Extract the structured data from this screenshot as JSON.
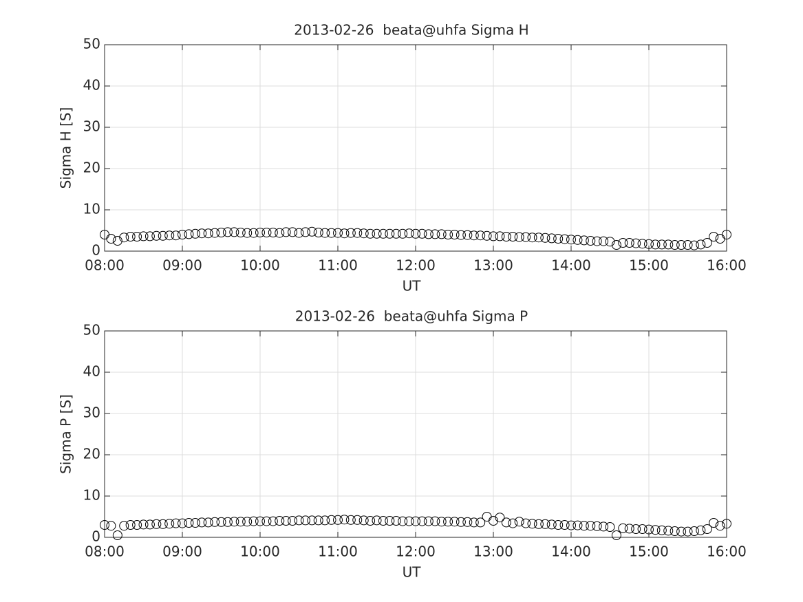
{
  "chart_data": [
    {
      "type": "scatter",
      "title": "2013-02-26  beata@uhfa Sigma H",
      "xlabel": "UT",
      "ylabel": "Sigma H [S]",
      "x": [
        "08:00",
        "08:05",
        "08:10",
        "08:15",
        "08:20",
        "08:25",
        "08:30",
        "08:35",
        "08:40",
        "08:45",
        "08:50",
        "08:55",
        "09:00",
        "09:05",
        "09:10",
        "09:15",
        "09:20",
        "09:25",
        "09:30",
        "09:35",
        "09:40",
        "09:45",
        "09:50",
        "09:55",
        "10:00",
        "10:05",
        "10:10",
        "10:15",
        "10:20",
        "10:25",
        "10:30",
        "10:35",
        "10:40",
        "10:45",
        "10:50",
        "10:55",
        "11:00",
        "11:05",
        "11:10",
        "11:15",
        "11:20",
        "11:25",
        "11:30",
        "11:35",
        "11:40",
        "11:45",
        "11:50",
        "11:55",
        "12:00",
        "12:05",
        "12:10",
        "12:15",
        "12:20",
        "12:25",
        "12:30",
        "12:35",
        "12:40",
        "12:45",
        "12:50",
        "12:55",
        "13:00",
        "13:05",
        "13:10",
        "13:15",
        "13:20",
        "13:25",
        "13:30",
        "13:35",
        "13:40",
        "13:45",
        "13:50",
        "13:55",
        "14:00",
        "14:05",
        "14:10",
        "14:15",
        "14:20",
        "14:25",
        "14:30",
        "14:35",
        "14:40",
        "14:45",
        "14:50",
        "14:55",
        "15:00",
        "15:05",
        "15:10",
        "15:15",
        "15:20",
        "15:25",
        "15:30",
        "15:35",
        "15:40",
        "15:45",
        "15:50",
        "15:55",
        "16:00"
      ],
      "values": [
        4.0,
        3.0,
        2.5,
        3.3,
        3.5,
        3.5,
        3.6,
        3.6,
        3.7,
        3.7,
        3.8,
        3.8,
        4.0,
        4.1,
        4.2,
        4.3,
        4.3,
        4.4,
        4.5,
        4.6,
        4.6,
        4.5,
        4.4,
        4.4,
        4.5,
        4.5,
        4.5,
        4.4,
        4.6,
        4.6,
        4.4,
        4.6,
        4.7,
        4.5,
        4.4,
        4.4,
        4.4,
        4.3,
        4.4,
        4.4,
        4.3,
        4.2,
        4.2,
        4.2,
        4.2,
        4.2,
        4.2,
        4.3,
        4.2,
        4.2,
        4.1,
        4.1,
        4.1,
        4.0,
        4.0,
        3.9,
        3.9,
        3.8,
        3.8,
        3.7,
        3.6,
        3.6,
        3.5,
        3.5,
        3.4,
        3.4,
        3.3,
        3.3,
        3.2,
        3.1,
        3.0,
        2.9,
        2.8,
        2.7,
        2.6,
        2.5,
        2.4,
        2.4,
        2.3,
        1.5,
        2.0,
        2.0,
        1.9,
        1.8,
        1.7,
        1.6,
        1.6,
        1.6,
        1.5,
        1.5,
        1.5,
        1.4,
        1.6,
        2.0,
        3.5,
        3.0,
        4.0
      ],
      "color": "#000000",
      "xlim": [
        "08:00",
        "16:00"
      ],
      "xticks": [
        "08:00",
        "09:00",
        "10:00",
        "11:00",
        "12:00",
        "13:00",
        "14:00",
        "15:00",
        "16:00"
      ],
      "ylim": [
        0,
        50
      ],
      "yticks": [
        0,
        10,
        20,
        30,
        40,
        50
      ],
      "grid": true
    },
    {
      "type": "scatter",
      "title": "2013-02-26  beata@uhfa Sigma P",
      "xlabel": "UT",
      "ylabel": "Sigma P [S]",
      "x": [
        "08:00",
        "08:05",
        "08:10",
        "08:15",
        "08:20",
        "08:25",
        "08:30",
        "08:35",
        "08:40",
        "08:45",
        "08:50",
        "08:55",
        "09:00",
        "09:05",
        "09:10",
        "09:15",
        "09:20",
        "09:25",
        "09:30",
        "09:35",
        "09:40",
        "09:45",
        "09:50",
        "09:55",
        "10:00",
        "10:05",
        "10:10",
        "10:15",
        "10:20",
        "10:25",
        "10:30",
        "10:35",
        "10:40",
        "10:45",
        "10:50",
        "10:55",
        "11:00",
        "11:05",
        "11:10",
        "11:15",
        "11:20",
        "11:25",
        "11:30",
        "11:35",
        "11:40",
        "11:45",
        "11:50",
        "11:55",
        "12:00",
        "12:05",
        "12:10",
        "12:15",
        "12:20",
        "12:25",
        "12:30",
        "12:35",
        "12:40",
        "12:45",
        "12:50",
        "12:55",
        "13:00",
        "13:05",
        "13:10",
        "13:15",
        "13:20",
        "13:25",
        "13:30",
        "13:35",
        "13:40",
        "13:45",
        "13:50",
        "13:55",
        "14:00",
        "14:05",
        "14:10",
        "14:15",
        "14:20",
        "14:25",
        "14:30",
        "14:35",
        "14:40",
        "14:45",
        "14:50",
        "14:55",
        "15:00",
        "15:05",
        "15:10",
        "15:15",
        "15:20",
        "15:25",
        "15:30",
        "15:35",
        "15:40",
        "15:45",
        "15:50",
        "15:55",
        "16:00"
      ],
      "values": [
        3.0,
        2.8,
        0.5,
        2.8,
        3.0,
        3.0,
        3.1,
        3.1,
        3.2,
        3.2,
        3.3,
        3.4,
        3.4,
        3.5,
        3.5,
        3.6,
        3.6,
        3.7,
        3.7,
        3.7,
        3.8,
        3.8,
        3.8,
        3.9,
        3.9,
        3.9,
        3.9,
        4.0,
        4.0,
        4.0,
        4.1,
        4.1,
        4.1,
        4.1,
        4.1,
        4.2,
        4.2,
        4.3,
        4.2,
        4.2,
        4.1,
        4.0,
        4.1,
        4.0,
        4.0,
        4.0,
        3.9,
        3.9,
        3.9,
        3.9,
        3.9,
        3.9,
        3.8,
        3.8,
        3.8,
        3.7,
        3.7,
        3.6,
        3.6,
        5.0,
        4.0,
        4.8,
        3.6,
        3.4,
        3.8,
        3.4,
        3.3,
        3.2,
        3.2,
        3.1,
        3.0,
        3.0,
        2.9,
        2.9,
        2.8,
        2.8,
        2.7,
        2.6,
        2.5,
        0.5,
        2.2,
        2.1,
        2.0,
        2.0,
        1.9,
        1.8,
        1.7,
        1.6,
        1.5,
        1.4,
        1.4,
        1.5,
        1.7,
        2.0,
        3.5,
        2.8,
        3.3
      ],
      "color": "#000000",
      "xlim": [
        "08:00",
        "16:00"
      ],
      "xticks": [
        "08:00",
        "09:00",
        "10:00",
        "11:00",
        "12:00",
        "13:00",
        "14:00",
        "15:00",
        "16:00"
      ],
      "ylim": [
        0,
        50
      ],
      "yticks": [
        0,
        10,
        20,
        30,
        40,
        50
      ],
      "grid": true
    }
  ]
}
